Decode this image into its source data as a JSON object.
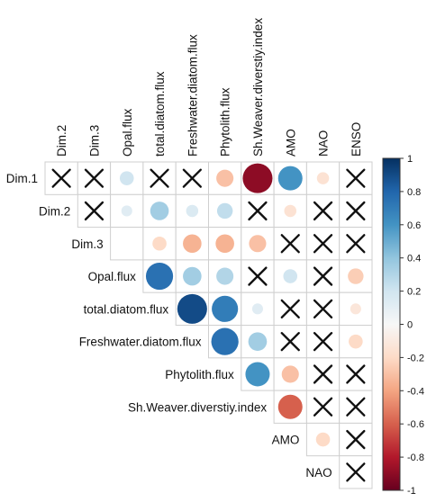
{
  "chart_data": {
    "type": "heatmap",
    "title": "",
    "column_labels": [
      "Dim.2",
      "Dim.3",
      "Opal.flux",
      "total.diatom.flux",
      "Freshwater.diatom.flux",
      "Phytolith.flux",
      "Sh.Weaver.diverstiy.index",
      "AMO",
      "NAO",
      "ENSO"
    ],
    "row_labels": [
      "Dim.1",
      "Dim.2",
      "Dim.3",
      "Opal.flux",
      "total.diatom.flux",
      "Freshwater.diatom.flux",
      "Phytolith.flux",
      "Sh.Weaver.diverstiy.index",
      "AMO",
      "NAO"
    ],
    "values": [
      [
        null,
        null,
        0.2,
        null,
        null,
        -0.3,
        -0.9,
        0.6,
        -0.15,
        null
      ],
      [
        null,
        null,
        0.12,
        0.35,
        0.15,
        0.25,
        null,
        -0.15,
        null,
        null
      ],
      [
        null,
        null,
        null,
        -0.2,
        -0.35,
        -0.35,
        -0.3,
        null,
        null,
        null
      ],
      [
        null,
        null,
        null,
        0.75,
        0.35,
        0.3,
        null,
        0.2,
        null,
        -0.25
      ],
      [
        null,
        null,
        null,
        null,
        0.9,
        0.7,
        0.12,
        null,
        null,
        -0.12
      ],
      [
        null,
        null,
        null,
        null,
        null,
        0.75,
        0.35,
        null,
        null,
        -0.2
      ],
      [
        null,
        null,
        null,
        null,
        null,
        null,
        0.6,
        -0.3,
        null,
        null
      ],
      [
        null,
        null,
        null,
        null,
        null,
        null,
        null,
        -0.6,
        null,
        null
      ],
      [
        null,
        null,
        null,
        null,
        null,
        null,
        null,
        null,
        -0.2,
        null
      ],
      [
        null,
        null,
        null,
        null,
        null,
        null,
        null,
        null,
        null,
        null
      ]
    ],
    "nonsignificant_cells": [
      [
        0,
        0
      ],
      [
        0,
        1
      ],
      [
        0,
        3
      ],
      [
        0,
        4
      ],
      [
        0,
        9
      ],
      [
        1,
        1
      ],
      [
        1,
        6
      ],
      [
        1,
        8
      ],
      [
        1,
        9
      ],
      [
        2,
        7
      ],
      [
        2,
        8
      ],
      [
        2,
        9
      ],
      [
        3,
        6
      ],
      [
        3,
        8
      ],
      [
        4,
        7
      ],
      [
        4,
        8
      ],
      [
        5,
        7
      ],
      [
        5,
        8
      ],
      [
        6,
        8
      ],
      [
        6,
        9
      ],
      [
        7,
        8
      ],
      [
        7,
        9
      ],
      [
        8,
        9
      ],
      [
        9,
        9
      ]
    ],
    "colorbar": {
      "range": [
        -1,
        1
      ],
      "tick_labels": [
        "1",
        "0.8",
        "0.6",
        "0.4",
        "0.2",
        "0",
        "-0.2",
        "-0.4",
        "-0.6",
        "-0.8",
        "-1"
      ],
      "colors": [
        "#67001f",
        "#b2182b",
        "#d6604d",
        "#f4a582",
        "#fddbc7",
        "#f7f7f7",
        "#d1e5f0",
        "#92c5de",
        "#4393c3",
        "#2166ac",
        "#053061"
      ]
    },
    "grid": true
  }
}
